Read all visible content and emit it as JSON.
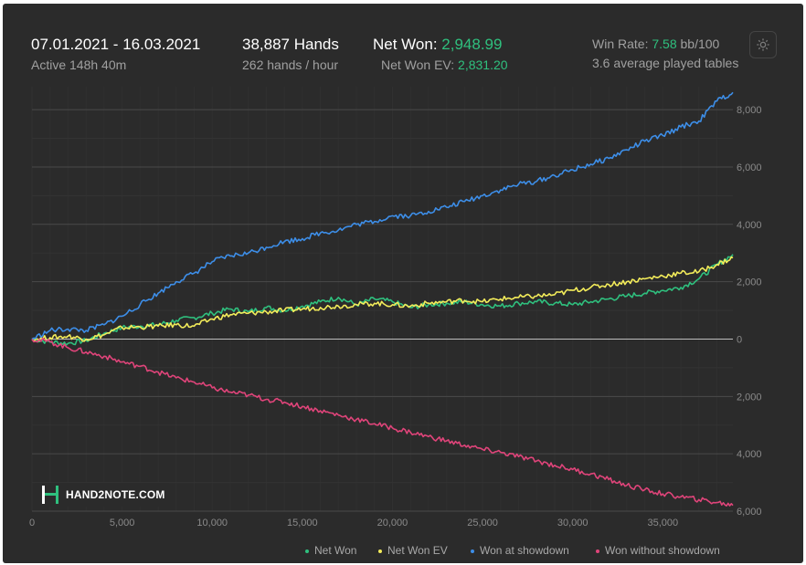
{
  "header": {
    "date_range": "07.01.2021 - 16.03.2021",
    "active_time": "Active 148h 40m",
    "hands": "38,887 Hands",
    "hands_per_hour": "262 hands / hour",
    "net_won_label": "Net Won:",
    "net_won_value": "2,948.99",
    "net_won_ev_label": "Net Won  EV:",
    "net_won_ev_value": "2,831.20",
    "win_rate_label": "Win Rate:",
    "win_rate_value": "7.58",
    "win_rate_unit": "bb/100",
    "avg_tables": "3.6 average played tables",
    "settings_icon": "gear-icon"
  },
  "logo": {
    "text": "HAND2NOTE.COM"
  },
  "legend": [
    {
      "label": "Net Won",
      "color": "#2fc07e"
    },
    {
      "label": "Net Won  EV",
      "color": "#f3ec5a"
    },
    {
      "label": "Won at showdown",
      "color": "#3d8ee8"
    },
    {
      "label": "Won without showdown",
      "color": "#e0447a"
    }
  ],
  "chart_data": {
    "type": "line",
    "title": "",
    "xlabel": "",
    "ylabel": "",
    "xlim": [
      0,
      38887
    ],
    "ylim": [
      -6000,
      8800
    ],
    "x_ticks": [
      0,
      5000,
      10000,
      15000,
      20000,
      25000,
      30000,
      35000
    ],
    "x_tick_labels": [
      "0",
      "5,000",
      "10,000",
      "15,000",
      "20,000",
      "25,000",
      "30,000",
      "35,000"
    ],
    "y_ticks": [
      8000,
      6000,
      4000,
      2000,
      0,
      -2000,
      -4000,
      -6000
    ],
    "y_tick_labels": [
      "8,000",
      "6,000",
      "4,000",
      "2,000",
      "0",
      "2,000",
      "4,000",
      "6,000"
    ],
    "grid": true,
    "legend_position": "bottom-right",
    "series": [
      {
        "name": "Net Won",
        "color": "#2fc07e",
        "x": [
          0,
          1000,
          2000,
          3000,
          4000,
          5000,
          6000,
          7000,
          8000,
          9000,
          10000,
          11000,
          12000,
          13000,
          14000,
          15000,
          16000,
          17000,
          18000,
          19000,
          20000,
          21000,
          22000,
          23000,
          24000,
          25000,
          26000,
          27000,
          28000,
          29000,
          30000,
          31000,
          32000,
          33000,
          34000,
          35000,
          36000,
          37000,
          38000,
          38887
        ],
        "y": [
          0,
          -100,
          -150,
          -50,
          200,
          400,
          450,
          500,
          650,
          750,
          900,
          1050,
          950,
          1100,
          1000,
          1150,
          1300,
          1450,
          1200,
          1400,
          1300,
          1100,
          1200,
          1250,
          1300,
          1200,
          1150,
          1250,
          1300,
          1250,
          1200,
          1300,
          1400,
          1500,
          1600,
          1700,
          1800,
          2100,
          2600,
          2950
        ]
      },
      {
        "name": "Net Won  EV",
        "color": "#f3ec5a",
        "x": [
          0,
          1000,
          2000,
          3000,
          4000,
          5000,
          6000,
          7000,
          8000,
          9000,
          10000,
          11000,
          12000,
          13000,
          14000,
          15000,
          16000,
          17000,
          18000,
          19000,
          20000,
          21000,
          22000,
          23000,
          24000,
          25000,
          26000,
          27000,
          28000,
          29000,
          30000,
          31000,
          32000,
          33000,
          34000,
          35000,
          36000,
          37000,
          38000,
          38887
        ],
        "y": [
          0,
          50,
          100,
          0,
          150,
          400,
          420,
          450,
          500,
          450,
          700,
          850,
          900,
          950,
          1000,
          1050,
          1100,
          1150,
          1200,
          1250,
          1200,
          1150,
          1250,
          1300,
          1350,
          1300,
          1400,
          1450,
          1500,
          1550,
          1700,
          1800,
          1900,
          2000,
          2100,
          2200,
          2300,
          2350,
          2600,
          2830
        ]
      },
      {
        "name": "Won at showdown",
        "color": "#3d8ee8",
        "x": [
          0,
          1000,
          2000,
          3000,
          4000,
          5000,
          6000,
          7000,
          8000,
          9000,
          10000,
          11000,
          12000,
          13000,
          14000,
          15000,
          16000,
          17000,
          18000,
          19000,
          20000,
          21000,
          22000,
          23000,
          24000,
          25000,
          26000,
          27000,
          28000,
          29000,
          30000,
          31000,
          32000,
          33000,
          34000,
          35000,
          36000,
          37000,
          38000,
          38887
        ],
        "y": [
          0,
          300,
          350,
          300,
          500,
          800,
          1200,
          1600,
          2000,
          2300,
          2700,
          2900,
          3000,
          3200,
          3400,
          3500,
          3700,
          3800,
          4000,
          4100,
          4300,
          4300,
          4450,
          4600,
          4800,
          5000,
          5200,
          5400,
          5500,
          5700,
          5900,
          6100,
          6300,
          6600,
          6900,
          7100,
          7400,
          7600,
          8300,
          8600
        ]
      },
      {
        "name": "Won without showdown",
        "color": "#e0447a",
        "x": [
          0,
          1000,
          2000,
          3000,
          4000,
          5000,
          6000,
          7000,
          8000,
          9000,
          10000,
          11000,
          12000,
          13000,
          14000,
          15000,
          16000,
          17000,
          18000,
          19000,
          20000,
          21000,
          22000,
          23000,
          24000,
          25000,
          26000,
          27000,
          28000,
          29000,
          30000,
          31000,
          32000,
          33000,
          34000,
          35000,
          36000,
          37000,
          38000,
          38887
        ],
        "y": [
          0,
          -100,
          -300,
          -450,
          -600,
          -800,
          -950,
          -1150,
          -1350,
          -1500,
          -1700,
          -1850,
          -1950,
          -2100,
          -2200,
          -2350,
          -2500,
          -2650,
          -2800,
          -2950,
          -3100,
          -3250,
          -3400,
          -3550,
          -3700,
          -3850,
          -3950,
          -4100,
          -4250,
          -4400,
          -4550,
          -4700,
          -4900,
          -5100,
          -5250,
          -5400,
          -5500,
          -5600,
          -5700,
          -5800
        ]
      }
    ]
  }
}
